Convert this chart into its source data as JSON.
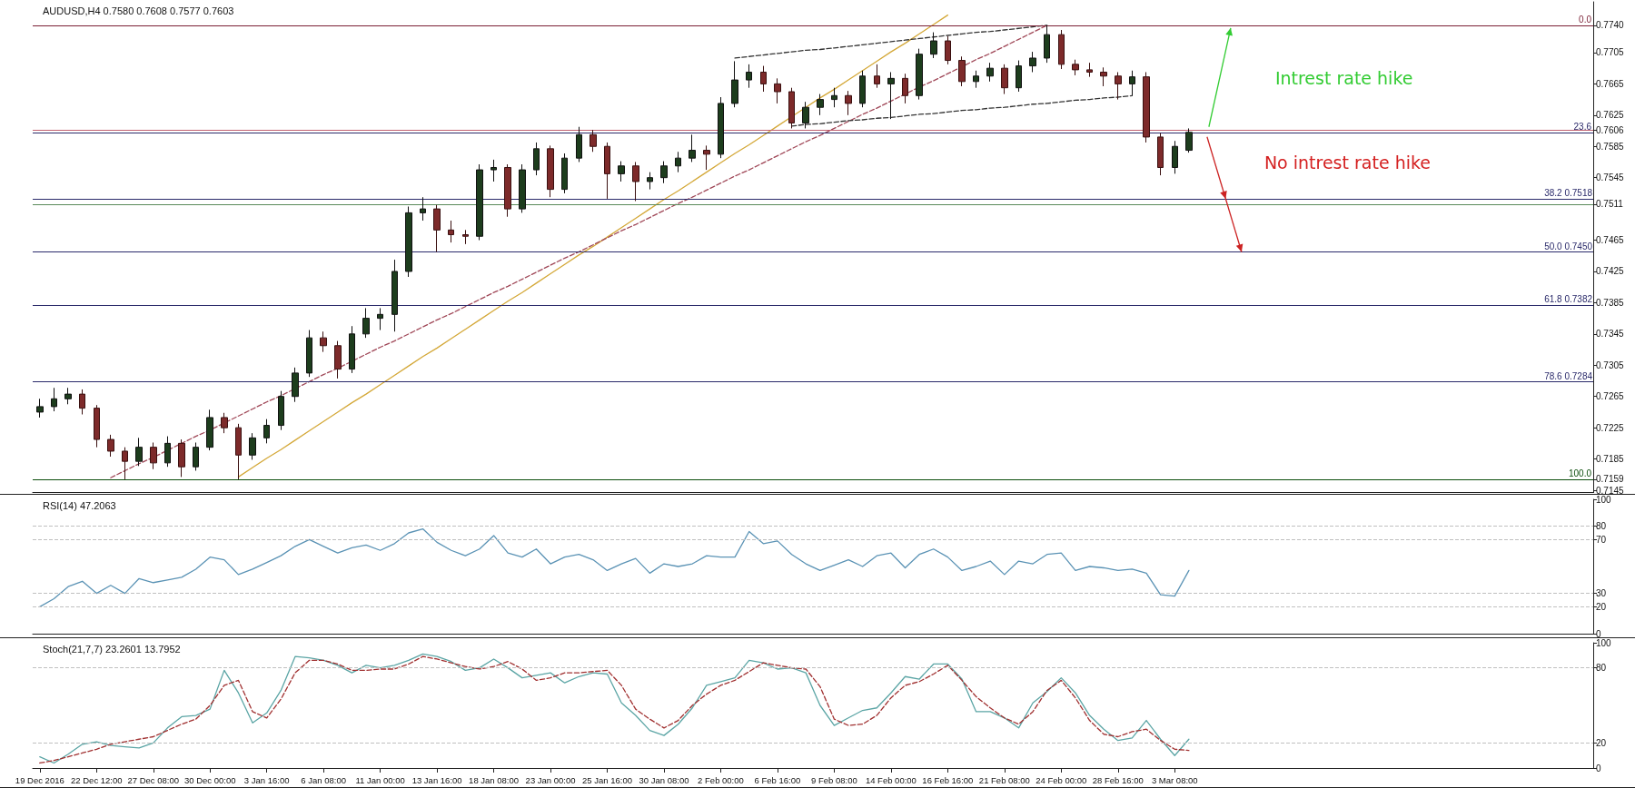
{
  "chart_data": [
    {
      "type": "candlestick",
      "title": "AUDUSD,H4 0.7580 0.7608 0.7577 0.7603",
      "categories": [
        null,
        null,
        null,
        null,
        null,
        null,
        null,
        null,
        null,
        null,
        null,
        null,
        null,
        null,
        null,
        null,
        null,
        null,
        null,
        null,
        null,
        null,
        null,
        null,
        null,
        null,
        null,
        null,
        null,
        null,
        null,
        null,
        null,
        null,
        null,
        null,
        null,
        null,
        null,
        null,
        null,
        null,
        null,
        null,
        null,
        null,
        null,
        null,
        null,
        null,
        null,
        null,
        null,
        null,
        null,
        null,
        null,
        null,
        null,
        null,
        null,
        null,
        null,
        null,
        null,
        null,
        null,
        null,
        null,
        null,
        null,
        null,
        null,
        null,
        null,
        null,
        null,
        null,
        null,
        null,
        null,
        null,
        null,
        null,
        null,
        null,
        null,
        null,
        null,
        null,
        null,
        null,
        null,
        null,
        null,
        null,
        null,
        null,
        null,
        null,
        null,
        null,
        null,
        null,
        null,
        null,
        null,
        null,
        null,
        null
      ],
      "ohlc": [
        [
          0.7245,
          0.7262,
          0.7238,
          0.7252
        ],
        [
          0.7252,
          0.7276,
          0.7246,
          0.7262
        ],
        [
          0.7262,
          0.7276,
          0.7255,
          0.7268
        ],
        [
          0.7268,
          0.7274,
          0.7242,
          0.725
        ],
        [
          0.725,
          0.7254,
          0.72,
          0.721
        ],
        [
          0.721,
          0.7216,
          0.7188,
          0.7195
        ],
        [
          0.7195,
          0.72,
          0.7159,
          0.7182
        ],
        [
          0.7182,
          0.7212,
          0.7176,
          0.72
        ],
        [
          0.72,
          0.7206,
          0.7172,
          0.718
        ],
        [
          0.718,
          0.7214,
          0.7175,
          0.7205
        ],
        [
          0.7205,
          0.721,
          0.7162,
          0.7175
        ],
        [
          0.7175,
          0.7206,
          0.717,
          0.72
        ],
        [
          0.72,
          0.7248,
          0.7196,
          0.7238
        ],
        [
          0.7238,
          0.7244,
          0.7218,
          0.7225
        ],
        [
          0.7225,
          0.723,
          0.7159,
          0.719
        ],
        [
          0.719,
          0.7218,
          0.7184,
          0.7212
        ],
        [
          0.7212,
          0.7236,
          0.7205,
          0.7228
        ],
        [
          0.7228,
          0.7272,
          0.7222,
          0.7265
        ],
        [
          0.7265,
          0.7302,
          0.7258,
          0.7295
        ],
        [
          0.7295,
          0.735,
          0.729,
          0.734
        ],
        [
          0.734,
          0.7348,
          0.7322,
          0.733
        ],
        [
          0.733,
          0.7336,
          0.7288,
          0.73
        ],
        [
          0.73,
          0.7355,
          0.7295,
          0.7345
        ],
        [
          0.7345,
          0.7378,
          0.734,
          0.7365
        ],
        [
          0.7365,
          0.7378,
          0.735,
          0.737
        ],
        [
          0.737,
          0.744,
          0.7348,
          0.7425
        ],
        [
          0.7425,
          0.7508,
          0.7418,
          0.75
        ],
        [
          0.75,
          0.752,
          0.749,
          0.7505
        ],
        [
          0.7505,
          0.751,
          0.745,
          0.7478
        ],
        [
          0.7478,
          0.749,
          0.7462,
          0.7472
        ],
        [
          0.7472,
          0.7478,
          0.746,
          0.747
        ],
        [
          0.747,
          0.7562,
          0.7465,
          0.7555
        ],
        [
          0.7555,
          0.7568,
          0.754,
          0.7558
        ],
        [
          0.7558,
          0.7562,
          0.7495,
          0.7505
        ],
        [
          0.7505,
          0.7562,
          0.75,
          0.7555
        ],
        [
          0.7555,
          0.759,
          0.7548,
          0.7582
        ],
        [
          0.7582,
          0.7586,
          0.752,
          0.753
        ],
        [
          0.753,
          0.7576,
          0.7525,
          0.757
        ],
        [
          0.757,
          0.761,
          0.7565,
          0.76
        ],
        [
          0.76,
          0.7606,
          0.7578,
          0.7585
        ],
        [
          0.7585,
          0.759,
          0.7518,
          0.755
        ],
        [
          0.755,
          0.7566,
          0.754,
          0.756
        ],
        [
          0.756,
          0.7565,
          0.7515,
          0.754
        ],
        [
          0.754,
          0.7552,
          0.753,
          0.7545
        ],
        [
          0.7545,
          0.7566,
          0.7538,
          0.756
        ],
        [
          0.756,
          0.7578,
          0.7552,
          0.757
        ],
        [
          0.757,
          0.76,
          0.7565,
          0.758
        ],
        [
          0.758,
          0.7586,
          0.7555,
          0.7575
        ],
        [
          0.7575,
          0.7648,
          0.757,
          0.764
        ],
        [
          0.764,
          0.7694,
          0.7635,
          0.767
        ],
        [
          0.767,
          0.769,
          0.766,
          0.768
        ],
        [
          0.768,
          0.7688,
          0.7655,
          0.7665
        ],
        [
          0.7665,
          0.7672,
          0.764,
          0.7655
        ],
        [
          0.7655,
          0.766,
          0.7608,
          0.7615
        ],
        [
          0.7615,
          0.7642,
          0.7608,
          0.7635
        ],
        [
          0.7635,
          0.7652,
          0.7625,
          0.7645
        ],
        [
          0.7645,
          0.766,
          0.7635,
          0.765
        ],
        [
          0.765,
          0.7656,
          0.7625,
          0.764
        ],
        [
          0.764,
          0.7682,
          0.7635,
          0.7675
        ],
        [
          0.7675,
          0.769,
          0.766,
          0.7665
        ],
        [
          0.7665,
          0.768,
          0.762,
          0.7672
        ],
        [
          0.7672,
          0.7678,
          0.764,
          0.765
        ],
        [
          0.765,
          0.771,
          0.7645,
          0.7703
        ],
        [
          0.7703,
          0.7731,
          0.7698,
          0.772
        ],
        [
          0.772,
          0.7726,
          0.769,
          0.7695
        ],
        [
          0.7695,
          0.77,
          0.7662,
          0.7668
        ],
        [
          0.7668,
          0.7682,
          0.766,
          0.7675
        ],
        [
          0.7675,
          0.7692,
          0.7668,
          0.7685
        ],
        [
          0.7685,
          0.769,
          0.7652,
          0.766
        ],
        [
          0.766,
          0.7695,
          0.7655,
          0.7688
        ],
        [
          0.7688,
          0.7706,
          0.768,
          0.7698
        ],
        [
          0.7698,
          0.774,
          0.7692,
          0.7728
        ],
        [
          0.7728,
          0.7734,
          0.7684,
          0.769
        ],
        [
          0.769,
          0.7696,
          0.7676,
          0.7683
        ],
        [
          0.7683,
          0.7692,
          0.7674,
          0.768
        ],
        [
          0.768,
          0.7686,
          0.7662,
          0.7675
        ],
        [
          0.7675,
          0.768,
          0.7645,
          0.7665
        ],
        [
          0.7665,
          0.7682,
          0.765,
          0.7674
        ],
        [
          0.7674,
          0.768,
          0.759,
          0.7597
        ],
        [
          0.7597,
          0.7602,
          0.7548,
          0.7558
        ],
        [
          0.7558,
          0.7592,
          0.755,
          0.7585
        ],
        [
          0.758,
          0.7608,
          0.7577,
          0.7603
        ],
        null,
        null,
        null,
        null,
        null,
        null,
        null,
        null,
        null,
        null,
        null,
        null,
        null,
        null,
        null,
        null,
        null,
        null,
        null,
        null,
        null,
        null,
        null,
        null,
        null,
        null,
        null,
        null
      ],
      "series": [
        {
          "type": "line",
          "color": "#d4a838",
          "line_style": "solid",
          "values": [
            null,
            null,
            null,
            null,
            null,
            null,
            null,
            null,
            null,
            null,
            null,
            null,
            null,
            null,
            0.7162,
            0.7174,
            0.7186,
            0.7197,
            0.7209,
            0.7221,
            0.7233,
            0.7245,
            0.7257,
            0.7268,
            0.728,
            0.7292,
            0.7304,
            0.7316,
            0.7327,
            0.7339,
            0.7351,
            0.7363,
            0.7375,
            0.7387,
            0.7398,
            0.741,
            0.7422,
            0.7434,
            0.7446,
            0.7457,
            0.7469,
            0.7481,
            0.7493,
            0.7505,
            0.7517,
            0.7528,
            0.754,
            0.7552,
            0.7564,
            0.7576,
            0.7587,
            0.7599,
            0.7611,
            0.7623,
            0.7635,
            0.7647,
            0.7658,
            0.767,
            0.7682,
            0.7694,
            0.7706,
            0.7717,
            0.7729,
            0.7741,
            0.7753,
            null,
            null,
            null,
            null,
            null,
            null,
            null,
            null,
            null,
            null,
            null,
            null,
            null,
            null,
            null,
            null,
            null,
            null,
            null,
            null,
            null,
            null,
            null,
            null,
            null,
            null,
            null,
            null,
            null,
            null,
            null,
            null,
            null,
            null,
            null,
            null,
            null,
            null,
            null,
            null,
            null,
            null,
            null,
            null,
            null
          ]
        },
        {
          "type": "line",
          "color": "#a04858",
          "line_style": "dashed",
          "values": [
            null,
            null,
            null,
            null,
            null,
            0.7161,
            0.717,
            0.7179,
            0.7187,
            0.7196,
            0.7205,
            0.7214,
            0.7222,
            0.7231,
            0.724,
            0.7249,
            0.7258,
            0.7266,
            0.7275,
            0.7284,
            0.7293,
            0.7301,
            0.731,
            0.7319,
            0.7328,
            0.7336,
            0.7345,
            0.7354,
            0.7363,
            0.7371,
            0.738,
            0.7389,
            0.7398,
            0.7406,
            0.7415,
            0.7424,
            0.7433,
            0.7442,
            0.745,
            0.7459,
            0.7468,
            0.7477,
            0.7485,
            0.7494,
            0.7503,
            0.7512,
            0.752,
            0.7529,
            0.7538,
            0.7547,
            0.7555,
            0.7564,
            0.7573,
            0.7582,
            0.7591,
            0.7599,
            0.7608,
            0.7617,
            0.7626,
            0.7634,
            0.7643,
            0.7652,
            0.7661,
            0.7669,
            0.7678,
            0.7687,
            0.7696,
            0.7704,
            0.7713,
            0.7722,
            0.7731,
            0.774,
            null,
            null,
            null,
            null,
            null,
            null,
            null,
            null,
            null,
            null,
            null,
            null,
            null,
            null,
            null,
            null,
            null,
            null,
            null,
            null,
            null,
            null,
            null,
            null,
            null,
            null,
            null,
            null,
            null,
            null,
            null,
            null,
            null,
            null,
            null,
            null,
            null,
            null
          ]
        },
        {
          "type": "line",
          "color": "#333333",
          "line_style": "dashed",
          "values": [
            null,
            null,
            null,
            null,
            null,
            null,
            null,
            null,
            null,
            null,
            null,
            null,
            null,
            null,
            null,
            null,
            null,
            null,
            null,
            null,
            null,
            null,
            null,
            null,
            null,
            null,
            null,
            null,
            null,
            null,
            null,
            null,
            null,
            null,
            null,
            null,
            null,
            null,
            null,
            null,
            null,
            null,
            null,
            null,
            null,
            null,
            null,
            null,
            null,
            0.7698,
            0.77,
            0.7702,
            0.7704,
            0.7706,
            0.7708,
            0.7709,
            0.7711,
            0.7713,
            0.7715,
            0.7717,
            0.7719,
            0.7721,
            0.7723,
            0.7725,
            0.7727,
            0.7729,
            0.7731,
            0.7732,
            0.7734,
            0.7736,
            0.7738,
            0.774,
            null,
            null,
            null,
            null,
            null,
            null,
            null,
            null,
            null,
            null,
            null,
            null,
            null,
            null,
            null,
            null,
            null,
            null,
            null,
            null,
            null,
            null,
            null,
            null,
            null,
            null,
            null,
            null,
            null,
            null,
            null,
            null,
            null,
            null,
            null,
            null,
            null,
            null
          ]
        },
        {
          "type": "line",
          "color": "#333333",
          "line_style": "dashed",
          "values": [
            null,
            null,
            null,
            null,
            null,
            null,
            null,
            null,
            null,
            null,
            null,
            null,
            null,
            null,
            null,
            null,
            null,
            null,
            null,
            null,
            null,
            null,
            null,
            null,
            null,
            null,
            null,
            null,
            null,
            null,
            null,
            null,
            null,
            null,
            null,
            null,
            null,
            null,
            null,
            null,
            null,
            null,
            null,
            null,
            null,
            null,
            null,
            null,
            null,
            null,
            null,
            null,
            null,
            0.7611,
            0.7613,
            0.7614,
            0.7616,
            0.7618,
            0.7619,
            0.7621,
            0.7622,
            0.7624,
            0.7626,
            0.7627,
            0.7629,
            0.7631,
            0.7632,
            0.7634,
            0.7635,
            0.7637,
            0.7639,
            0.764,
            0.7642,
            0.7644,
            0.7645,
            0.7647,
            0.7648,
            0.765,
            null,
            null,
            null,
            null,
            null,
            null,
            null,
            null,
            null,
            null,
            null,
            null,
            null,
            null,
            null,
            null,
            null,
            null,
            null,
            null,
            null,
            null,
            null,
            null,
            null,
            null,
            null,
            null,
            null,
            null,
            null,
            null
          ]
        }
      ],
      "marker": "none",
      "ylim": [
        0.7142,
        0.777
      ],
      "yticks": [
        0.7145,
        0.7159,
        0.7185,
        0.7225,
        0.7265,
        0.7305,
        0.7345,
        0.7385,
        0.7425,
        0.7465,
        0.7511,
        0.7545,
        0.7585,
        0.7606,
        0.7625,
        0.7665,
        0.7705,
        {
          "value": 0.774,
          "label": "0.7740"
        }
      ],
      "tick_labels": "y",
      "ref_lines": [
        {
          "axis": "y",
          "value": 0.774,
          "label": null,
          "color": "#7a1f35"
        },
        {
          "axis": "y",
          "value": 0.7606,
          "label": null,
          "color": "#c06070"
        },
        {
          "axis": "y",
          "value": 0.7603,
          "label": null,
          "color": "#2a2a6a"
        },
        {
          "axis": "y",
          "value": 0.7518,
          "label": "38.2 0.7518",
          "color": "#2a2a6a"
        },
        {
          "axis": "y",
          "value": 0.7511,
          "label": null,
          "color": "#5a8a5a"
        },
        {
          "axis": "y",
          "value": 0.745,
          "label": "50.0 0.7450",
          "color": "#2a2a6a"
        },
        {
          "axis": "y",
          "value": 0.7382,
          "label": "61.8 0.7382",
          "color": "#2a2a6a"
        },
        {
          "axis": "y",
          "value": 0.7284,
          "label": "78.6 0.7284",
          "color": "#2a2a6a"
        },
        {
          "axis": "y",
          "value": 0.7159,
          "label": null,
          "color": "#0b4d0b"
        }
      ],
      "annotations": [
        "Intrest rate hike",
        "No intrest rate hike",
        "0.0",
        "23.6",
        "100.0"
      ]
    },
    {
      "type": "line",
      "title": "RSI(14) 47.2063",
      "color": "#5b93b5",
      "marker": "none",
      "categories": [
        null,
        null,
        null,
        null,
        null,
        null,
        null,
        null,
        null,
        null,
        null,
        null,
        null,
        null,
        null,
        null,
        null,
        null,
        null,
        null,
        null,
        null,
        null,
        null,
        null,
        null,
        null,
        null,
        null,
        null,
        null,
        null,
        null,
        null,
        null,
        null,
        null,
        null,
        null,
        null,
        null,
        null,
        null,
        null,
        null,
        null,
        null,
        null,
        null,
        null,
        null,
        null,
        null,
        null,
        null,
        null,
        null,
        null,
        null,
        null,
        null,
        null,
        null,
        null,
        null,
        null,
        null,
        null,
        null,
        null,
        null,
        null,
        null,
        null,
        null,
        null,
        null,
        null,
        null,
        null,
        null,
        null,
        null,
        null,
        null,
        null,
        null,
        null,
        null,
        null,
        null,
        null,
        null,
        null,
        null,
        null,
        null,
        null,
        null,
        null,
        null,
        null,
        null,
        null,
        null,
        null,
        null,
        null,
        null,
        null
      ],
      "values": [
        20,
        26,
        35,
        39,
        30,
        36,
        30,
        41,
        38,
        40,
        42,
        48,
        57,
        55,
        44,
        48,
        53,
        58,
        65,
        70,
        65,
        60,
        64,
        66,
        62,
        67,
        75,
        78,
        68,
        62,
        58,
        63,
        73,
        60,
        57,
        63,
        52,
        57,
        59,
        55,
        47,
        52,
        56,
        45,
        52,
        50,
        52,
        58,
        57,
        57,
        76,
        67,
        69,
        59,
        52,
        47,
        51,
        55,
        50,
        58,
        60,
        49,
        59,
        63,
        57,
        47,
        50,
        54,
        44,
        54,
        52,
        59,
        60,
        47,
        50,
        49,
        47,
        48,
        45,
        29,
        28,
        47,
        null,
        null,
        null,
        null,
        null,
        null,
        null,
        null,
        null,
        null,
        null,
        null,
        null,
        null,
        null,
        null,
        null,
        null,
        null,
        null,
        null,
        null,
        null,
        null,
        null,
        null,
        null,
        null
      ],
      "ylim": [
        0,
        100
      ],
      "yticks": [
        0,
        20,
        30,
        70,
        80,
        100
      ],
      "tick_labels": "y",
      "ref_lines": [
        {
          "axis": "y",
          "value": 80,
          "label": null,
          "color": "#c0c0c0",
          "line_style": "dashed"
        },
        {
          "axis": "y",
          "value": 70,
          "label": null,
          "color": "#c0c0c0",
          "line_style": "dashed"
        },
        {
          "axis": "y",
          "value": 30,
          "label": null,
          "color": "#c0c0c0",
          "line_style": "dashed"
        },
        {
          "axis": "y",
          "value": 20,
          "label": null,
          "color": "#c0c0c0",
          "line_style": "dashed"
        }
      ]
    },
    {
      "type": "line",
      "title": "Stoch(21,7,7) 23.2601 13.7952",
      "marker": "none",
      "categories": [
        "19 Dec 2016",
        null,
        null,
        null,
        "22 Dec 12:00",
        null,
        null,
        null,
        "27 Dec 08:00",
        null,
        null,
        null,
        "30 Dec 00:00",
        null,
        null,
        null,
        "3 Jan 16:00",
        null,
        null,
        null,
        "6 Jan 08:00",
        null,
        null,
        null,
        "11 Jan 00:00",
        null,
        null,
        null,
        "13 Jan 16:00",
        null,
        null,
        null,
        "18 Jan 08:00",
        null,
        null,
        null,
        "23 Jan 00:00",
        null,
        null,
        null,
        "25 Jan 16:00",
        null,
        null,
        null,
        "30 Jan 08:00",
        null,
        null,
        null,
        "2 Feb 00:00",
        null,
        null,
        null,
        "6 Feb 16:00",
        null,
        null,
        null,
        "9 Feb 08:00",
        null,
        null,
        null,
        "14 Feb 00:00",
        null,
        null,
        null,
        "16 Feb 16:00",
        null,
        null,
        null,
        "21 Feb 08:00",
        null,
        null,
        null,
        "24 Feb 00:00",
        null,
        null,
        null,
        "28 Feb 16:00",
        null,
        null,
        null,
        "3 Mar 08:00",
        null,
        null,
        null,
        null,
        null,
        null,
        null,
        null,
        null,
        null,
        null,
        null,
        null,
        null,
        null,
        null,
        null,
        null,
        null,
        null,
        null,
        null,
        null,
        null,
        null,
        null,
        null,
        null,
        null
      ],
      "series": [
        {
          "color": "#5ba5a5",
          "line_style": "solid",
          "values": [
            9,
            4,
            11,
            19,
            21,
            18,
            17,
            16,
            20,
            32,
            41,
            42,
            47,
            78,
            60,
            36,
            44,
            62,
            89,
            88,
            86,
            82,
            76,
            82,
            80,
            82,
            86,
            91,
            89,
            85,
            78,
            80,
            87,
            80,
            72,
            74,
            76,
            68,
            73,
            76,
            75,
            52,
            42,
            30,
            26,
            35,
            48,
            66,
            69,
            72,
            86,
            84,
            79,
            80,
            76,
            50,
            34,
            40,
            46,
            48,
            60,
            73,
            71,
            83,
            83,
            71,
            45,
            45,
            40,
            32,
            52,
            61,
            72,
            60,
            42,
            31,
            22,
            24,
            38,
            23,
            10,
            23,
            null,
            null,
            null,
            null,
            null,
            null,
            null,
            null,
            null,
            null,
            null,
            null,
            null,
            null,
            null,
            null,
            null,
            null,
            null,
            null,
            null,
            null,
            null,
            null,
            null,
            null,
            null,
            null
          ]
        },
        {
          "color": "#a03030",
          "line_style": "dashed",
          "values": [
            4,
            6,
            9,
            12,
            15,
            19,
            21,
            23,
            25,
            30,
            35,
            39,
            50,
            66,
            70,
            45,
            40,
            55,
            76,
            86,
            86,
            83,
            78,
            78,
            79,
            79,
            83,
            89,
            87,
            84,
            81,
            79,
            81,
            85,
            79,
            70,
            72,
            76,
            76,
            77,
            78,
            66,
            47,
            39,
            32,
            38,
            50,
            59,
            66,
            70,
            77,
            84,
            82,
            80,
            79,
            65,
            39,
            34,
            35,
            42,
            56,
            66,
            69,
            75,
            82,
            70,
            57,
            48,
            40,
            35,
            45,
            62,
            70,
            56,
            38,
            27,
            25,
            29,
            31,
            22,
            15,
            14,
            null,
            null,
            null,
            null,
            null,
            null,
            null,
            null,
            null,
            null,
            null,
            null,
            null,
            null,
            null,
            null,
            null,
            null,
            null,
            null,
            null,
            null,
            null,
            null,
            null,
            null,
            null,
            null
          ]
        }
      ],
      "ylim": [
        0,
        100
      ],
      "yticks": [
        0,
        20,
        80,
        100
      ],
      "ref_lines": [
        {
          "axis": "y",
          "value": 80,
          "label": null,
          "color": "#c0c0c0",
          "line_style": "dashed"
        },
        {
          "axis": "y",
          "value": 20,
          "label": null,
          "color": "#c0c0c0",
          "line_style": "dashed"
        }
      ]
    }
  ]
}
